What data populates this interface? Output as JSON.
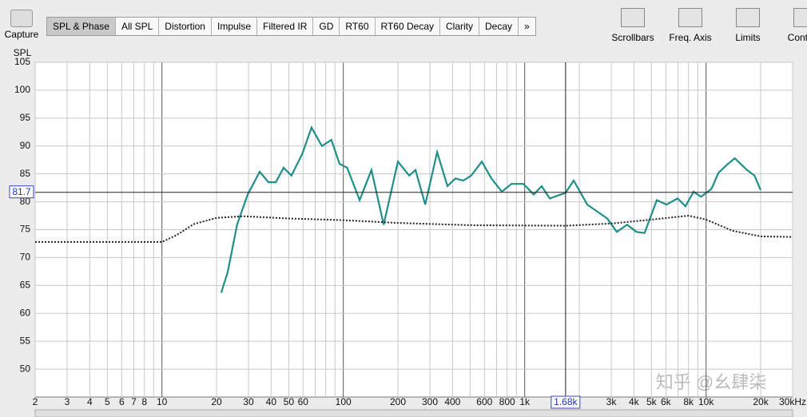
{
  "toolbar": {
    "capture": "Capture",
    "tabs": [
      "SPL & Phase",
      "All SPL",
      "Distortion",
      "Impulse",
      "Filtered IR",
      "GD",
      "RT60",
      "RT60 Decay",
      "Clarity",
      "Decay",
      "»"
    ],
    "tools": [
      "Scrollbars",
      "Freq. Axis",
      "Limits",
      "Controls"
    ]
  },
  "watermark": "知乎 @幺肆柒",
  "chart_data": {
    "type": "line",
    "y_label": "SPL",
    "xscale": "log",
    "grid": true,
    "xlim": [
      2,
      30000
    ],
    "ylim": [
      45,
      105
    ],
    "yticks": [
      50,
      55,
      60,
      65,
      70,
      75,
      80,
      85,
      90,
      95,
      100,
      105
    ],
    "xticks": [
      2,
      3,
      4,
      5,
      6,
      7,
      8,
      10,
      20,
      30,
      40,
      50,
      60,
      100,
      200,
      300,
      400,
      600,
      800,
      {
        "value": 1000,
        "label": "1k"
      },
      {
        "value": 3000,
        "label": "3k"
      },
      {
        "value": 4000,
        "label": "4k"
      },
      {
        "value": 5000,
        "label": "5k"
      },
      {
        "value": 6000,
        "label": "6k"
      },
      {
        "value": 8000,
        "label": "8k"
      },
      {
        "value": 10000,
        "label": "10k"
      },
      {
        "value": 20000,
        "label": "20k"
      },
      {
        "value": 30000,
        "label": "30kHz"
      }
    ],
    "xgrid": [
      2,
      3,
      4,
      5,
      6,
      7,
      8,
      9,
      10,
      20,
      30,
      40,
      50,
      60,
      70,
      80,
      90,
      100,
      200,
      300,
      400,
      500,
      600,
      700,
      800,
      900,
      1000,
      2000,
      3000,
      4000,
      5000,
      6000,
      7000,
      8000,
      9000,
      10000,
      20000,
      30000
    ],
    "cursor": {
      "x": {
        "value": 1680,
        "label": "1.68k"
      },
      "y": 81.7
    },
    "series": [
      {
        "color": "#1f8f8a",
        "style": "solid",
        "x": [
          21.2,
          23,
          26,
          29.7,
          34.6,
          38.7,
          42.4,
          46.9,
          51.8,
          59.2,
          66.8,
          76.2,
          86,
          95.3,
          105,
          123,
          143,
          167,
          200,
          231,
          250,
          283,
          329,
          375,
          415,
          459,
          507,
          580,
          655,
          748,
          845,
          984,
          1122,
          1240,
          1374,
          1680,
          1862,
          2213,
          2852,
          3220,
          3673,
          4130,
          4580,
          5346,
          6050,
          6966,
          7700,
          8530,
          9380,
          10700,
          11700,
          13100,
          14400,
          16800,
          18500,
          20000
        ],
        "values": [
          63.7,
          67.3,
          76.0,
          81.3,
          85.4,
          83.5,
          83.5,
          86.1,
          84.7,
          88.5,
          93.3,
          90.0,
          91.1,
          86.8,
          86.1,
          80.3,
          85.7,
          75.9,
          87.2,
          84.7,
          85.7,
          79.5,
          88.9,
          82.8,
          84.2,
          83.8,
          84.7,
          87.2,
          84.2,
          81.8,
          83.2,
          83.2,
          81.3,
          82.8,
          80.6,
          81.6,
          83.8,
          79.5,
          77.0,
          74.6,
          75.9,
          74.6,
          74.4,
          80.3,
          79.5,
          80.6,
          79.2,
          81.8,
          80.9,
          82.3,
          85.2,
          86.7,
          87.8,
          85.7,
          84.7,
          82.1
        ]
      },
      {
        "color": "#222222",
        "style": "dotted",
        "x": [
          2,
          10,
          12,
          15,
          20,
          28,
          50,
          100,
          200,
          500,
          1680,
          3000,
          5000,
          8000,
          10000,
          14000,
          20000,
          30000
        ],
        "values": [
          72.8,
          72.8,
          74.0,
          76.0,
          77.1,
          77.4,
          77.0,
          76.7,
          76.2,
          75.8,
          75.7,
          76.1,
          76.8,
          77.5,
          76.8,
          74.8,
          73.8,
          73.7
        ]
      }
    ]
  }
}
